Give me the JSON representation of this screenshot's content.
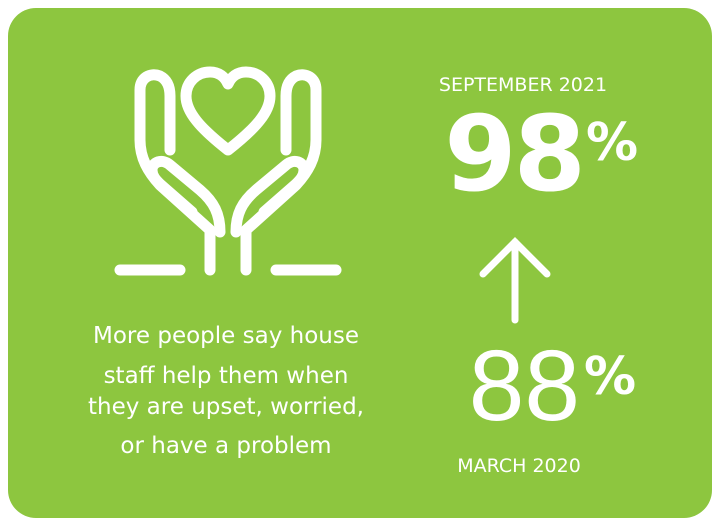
{
  "top_period": "SEPTEMBER 2021",
  "top_value": "98",
  "top_unit": "%",
  "bottom_value": "88",
  "bottom_unit": "%",
  "bottom_period": "MARCH 2020",
  "description_lines": [
    "More people say house",
    "staff help them when",
    "they are upset, worried,",
    "or have a problem"
  ]
}
